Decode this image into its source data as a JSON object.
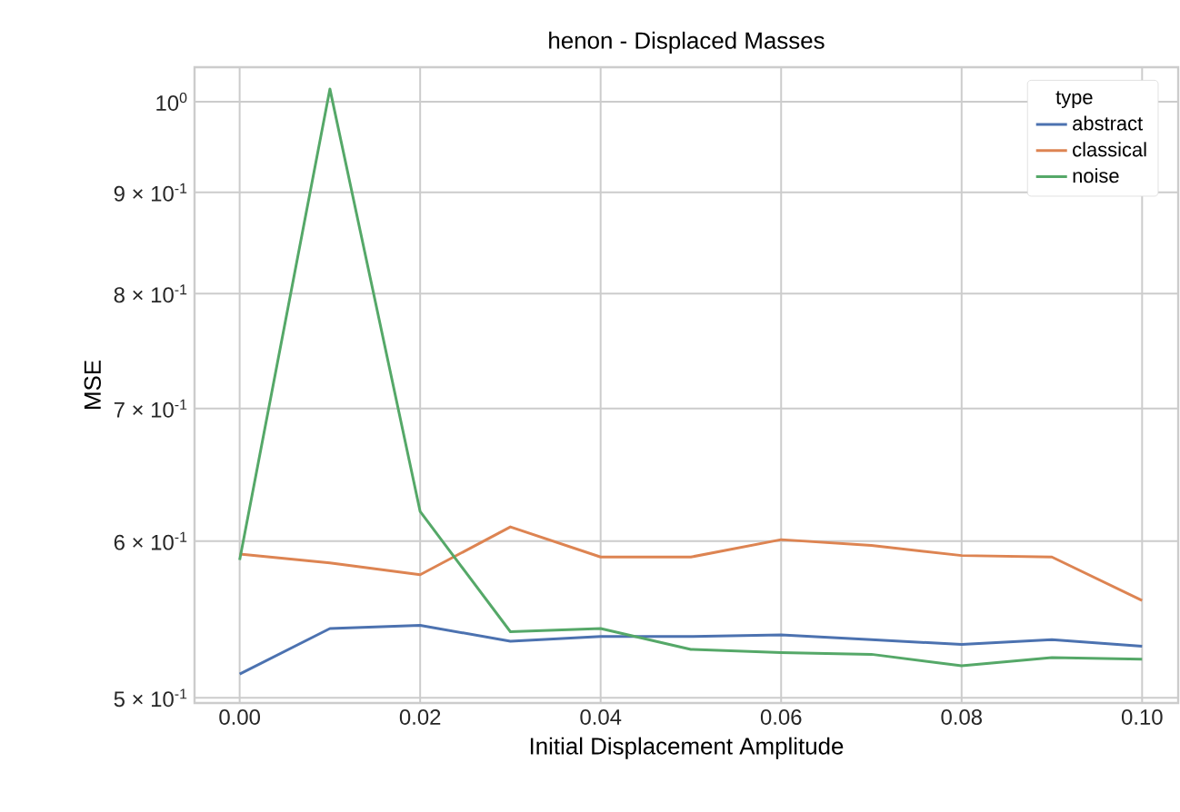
{
  "chart_data": {
    "type": "line",
    "title": "henon - Displaced Masses",
    "xlabel": "Initial Displacement Amplitude",
    "ylabel": "MSE",
    "legend_title": "type",
    "x": [
      0,
      0.01,
      0.02,
      0.03,
      0.04,
      0.05,
      0.06,
      0.07,
      0.08,
      0.09,
      0.1
    ],
    "series": [
      {
        "name": "abstract",
        "color": "#4c72b0",
        "values": [
          0.514,
          0.542,
          0.544,
          0.534,
          0.537,
          0.537,
          0.538,
          0.535,
          0.532,
          0.535,
          0.531
        ]
      },
      {
        "name": "classical",
        "color": "#dd8452",
        "values": [
          0.591,
          0.585,
          0.577,
          0.61,
          0.589,
          0.589,
          0.601,
          0.597,
          0.59,
          0.589,
          0.56
        ]
      },
      {
        "name": "noise",
        "color": "#55a868",
        "values": [
          0.587,
          1.015,
          0.621,
          0.54,
          0.542,
          0.529,
          0.527,
          0.526,
          0.519,
          0.524,
          0.523
        ]
      }
    ],
    "log": "y",
    "xlim": [
      -0.005,
      0.104
    ],
    "ylim": [
      0.497,
      1.041
    ],
    "xticks": [
      {
        "value": 0,
        "label": "0.00"
      },
      {
        "value": 0.02,
        "label": "0.02"
      },
      {
        "value": 0.04,
        "label": "0.04"
      },
      {
        "value": 0.06,
        "label": "0.06"
      },
      {
        "value": 0.08,
        "label": "0.08"
      },
      {
        "value": 0.1,
        "label": "0.10"
      }
    ],
    "yticks": [
      {
        "value": 0.5,
        "label": "5 × 10$^{-1}$"
      },
      {
        "value": 0.6,
        "label": "6 × 10$^{-1}$"
      },
      {
        "value": 0.7,
        "label": "7 × 10$^{-1}$"
      },
      {
        "value": 0.8,
        "label": "8 × 10$^{-1}$"
      },
      {
        "value": 0.9,
        "label": "9 × 10$^{-1}$"
      },
      {
        "value": 1,
        "label": "10$^{0}$"
      }
    ],
    "grid": true,
    "legend": "top right",
    "line_style": "solid",
    "marker": "none"
  }
}
